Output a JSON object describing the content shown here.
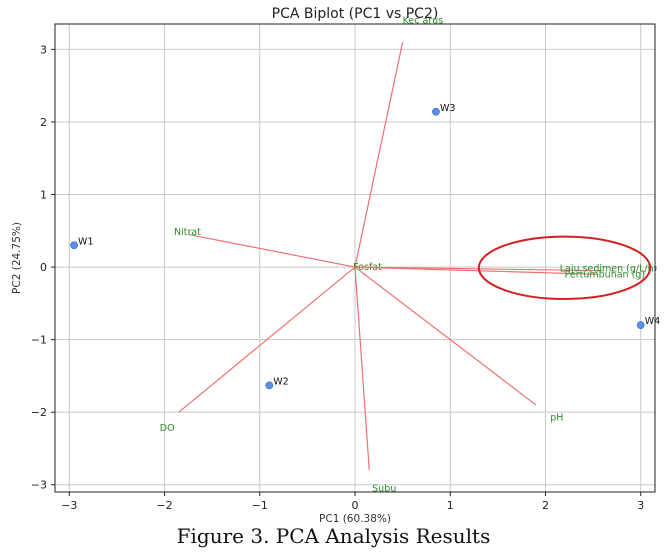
{
  "chart_data": {
    "type": "scatter",
    "title": "PCA Biplot (PC1 vs PC2)",
    "xlabel": "PC1 (60.38%)",
    "ylabel": "PC2 (24.75%)",
    "xlim": [
      -3.15,
      3.15
    ],
    "ylim": [
      -3.1,
      3.35
    ],
    "grid": true,
    "xticks": [
      -3,
      -2,
      -1,
      0,
      1,
      2,
      3
    ],
    "yticks": [
      -3,
      -2,
      -1,
      0,
      1,
      2,
      3
    ],
    "tick_labels_x": [
      "−3",
      "−2",
      "−1",
      "0",
      "1",
      "2",
      "3"
    ],
    "tick_labels_y": [
      "−3",
      "−2",
      "−1",
      "0",
      "1",
      "2",
      "3"
    ],
    "point_color": "#5b8ee6",
    "loading_color": "#f07070",
    "loading_label_color": "#2e8b2e",
    "highlight_color": "#d42020",
    "points": [
      {
        "label": "W1",
        "x": -2.95,
        "y": 0.3
      },
      {
        "label": "W2",
        "x": -0.9,
        "y": -1.63
      },
      {
        "label": "W3",
        "x": 0.85,
        "y": 2.14
      },
      {
        "label": "W4",
        "x": 3.0,
        "y": -0.8
      }
    ],
    "loadings": [
      {
        "label": "Kec arus",
        "x": 0.5,
        "y": 3.1,
        "lx": 0.5,
        "ly": 3.4
      },
      {
        "label": "Nitrat",
        "x": -1.75,
        "y": 0.45,
        "lx": -1.9,
        "ly": 0.48
      },
      {
        "label": "Fosfat",
        "x": 0.05,
        "y": 0.0,
        "lx": -0.02,
        "ly": 0.0
      },
      {
        "label": "Laju sedimen (g/L/h)",
        "x": 2.6,
        "y": -0.05,
        "lx": 2.15,
        "ly": -0.02
      },
      {
        "label": "Pertumbuhan (g)",
        "x": 2.55,
        "y": -0.1,
        "lx": 2.2,
        "ly": -0.1
      },
      {
        "label": "pH",
        "x": 1.9,
        "y": -1.9,
        "lx": 2.05,
        "ly": -2.07
      },
      {
        "label": "DO",
        "x": -1.85,
        "y": -2.0,
        "lx": -2.05,
        "ly": -2.22
      },
      {
        "label": "Subu",
        "x": 0.15,
        "y": -2.8,
        "lx": 0.18,
        "ly": -3.05
      }
    ],
    "highlight": {
      "type": "ellipse",
      "cx": 2.2,
      "cy": -0.01,
      "rx": 0.9,
      "ry": 0.43
    }
  },
  "caption": "Figure 3. PCA Analysis Results"
}
